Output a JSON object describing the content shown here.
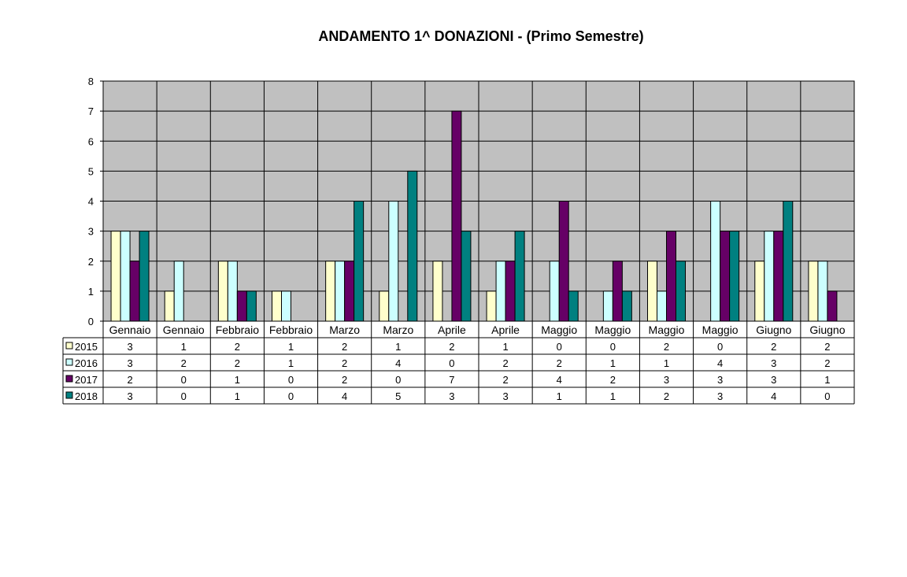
{
  "chart_data": {
    "type": "bar",
    "title": "ANDAMENTO  1^ DONAZIONI   -  (Primo Semestre)",
    "xlabel": "",
    "ylabel": "",
    "ylim": [
      0,
      8
    ],
    "yticks": [
      0,
      1,
      2,
      3,
      4,
      5,
      6,
      7,
      8
    ],
    "grid": true,
    "legend": "data-table-left",
    "categories": [
      "Gennaio",
      "Gennaio",
      "Febbraio",
      "Febbraio",
      "Marzo",
      "Marzo",
      "Aprile",
      "Aprile",
      "Maggio",
      "Maggio",
      "Maggio",
      "Maggio",
      "Giugno",
      "Giugno"
    ],
    "series": [
      {
        "name": "2015",
        "color": "#FFFFCC",
        "values": [
          3,
          1,
          2,
          1,
          2,
          1,
          2,
          1,
          0,
          0,
          2,
          0,
          2,
          2
        ]
      },
      {
        "name": "2016",
        "color": "#CCFFFF",
        "values": [
          3,
          2,
          2,
          1,
          2,
          4,
          0,
          2,
          2,
          1,
          1,
          4,
          3,
          2
        ]
      },
      {
        "name": "2017",
        "color": "#660066",
        "values": [
          2,
          0,
          1,
          0,
          2,
          0,
          7,
          2,
          4,
          2,
          3,
          3,
          3,
          1
        ]
      },
      {
        "name": "2018",
        "color": "#008080",
        "values": [
          3,
          0,
          1,
          0,
          4,
          5,
          3,
          3,
          1,
          1,
          2,
          3,
          4,
          0
        ]
      }
    ],
    "plot_background": "#C0C0C0"
  }
}
